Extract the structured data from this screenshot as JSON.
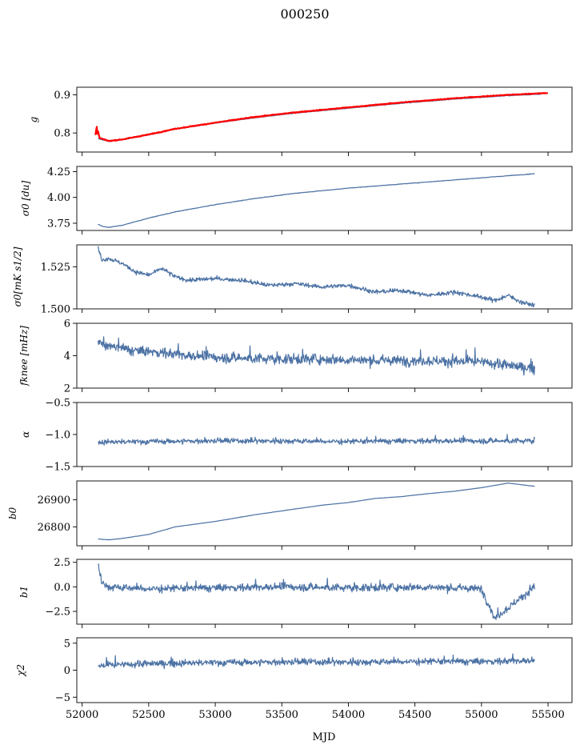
{
  "figure": {
    "title": "000250",
    "xlabel": "MJD"
  },
  "colors": {
    "series": "#4c72a4",
    "overlay": "#ff0000",
    "axes": "#000000",
    "background": "#ffffff"
  },
  "chart_data": [
    {
      "type": "line",
      "ylabel": "g",
      "xlim": [
        51960,
        55680
      ],
      "ylim": [
        0.75,
        0.92
      ],
      "yticks": [
        0.8,
        0.9
      ],
      "ytick_labels": [
        "0.8",
        "0.9"
      ],
      "series": [
        {
          "x": [
            52120,
            52200,
            52300,
            52500,
            52700,
            53000,
            53300,
            53600,
            54000,
            54400,
            54800,
            55200,
            55450
          ],
          "values": [
            0.785,
            0.778,
            0.782,
            0.795,
            0.81,
            0.826,
            0.84,
            0.852,
            0.865,
            0.878,
            0.889,
            0.898,
            0.902
          ]
        },
        {
          "x": [
            52100,
            52110,
            52115,
            52120,
            52130,
            52200,
            52300,
            52500,
            52700,
            53000,
            53300,
            53600,
            54000,
            54400,
            54800,
            55200,
            55500
          ],
          "values": [
            0.795,
            0.818,
            0.792,
            0.805,
            0.787,
            0.779,
            0.783,
            0.796,
            0.811,
            0.827,
            0.842,
            0.854,
            0.867,
            0.88,
            0.891,
            0.9,
            0.905
          ]
        }
      ]
    },
    {
      "type": "line",
      "ylabel": "σ0 [du]",
      "xlim": [
        51960,
        55680
      ],
      "ylim": [
        3.68,
        4.3
      ],
      "yticks": [
        3.75,
        4.0,
        4.25
      ],
      "ytick_labels": [
        "3.75",
        "4.00",
        "4.25"
      ],
      "series": [
        {
          "x": [
            52120,
            52150,
            52200,
            52300,
            52500,
            52700,
            53000,
            53300,
            53600,
            54000,
            54400,
            54800,
            55200,
            55400
          ],
          "values": [
            3.74,
            3.72,
            3.71,
            3.73,
            3.8,
            3.86,
            3.93,
            3.99,
            4.04,
            4.09,
            4.13,
            4.17,
            4.21,
            4.23
          ]
        }
      ]
    },
    {
      "type": "line",
      "ylabel": "σ0[mK s1/2]",
      "xlim": [
        51960,
        55680
      ],
      "ylim": [
        1.5,
        1.538
      ],
      "yticks": [
        1.5,
        1.525
      ],
      "ytick_labels": [
        "1.500",
        "1.525"
      ],
      "series": [
        {
          "x": [
            52120,
            52150,
            52200,
            52300,
            52400,
            52500,
            52600,
            52700,
            52800,
            53000,
            53200,
            53400,
            53600,
            53800,
            54000,
            54200,
            54400,
            54600,
            54800,
            55000,
            55100,
            55200,
            55300,
            55400
          ],
          "values": [
            1.536,
            1.529,
            1.53,
            1.527,
            1.522,
            1.52,
            1.524,
            1.519,
            1.517,
            1.518,
            1.517,
            1.514,
            1.515,
            1.513,
            1.514,
            1.51,
            1.511,
            1.508,
            1.51,
            1.507,
            1.505,
            1.508,
            1.504,
            1.502
          ]
        }
      ]
    },
    {
      "type": "line",
      "ylabel": "fknee [mHz]",
      "xlim": [
        51960,
        55680
      ],
      "ylim": [
        2,
        6
      ],
      "yticks": [
        2,
        4,
        6
      ],
      "ytick_labels": [
        "2",
        "4",
        "6"
      ],
      "series": [
        {
          "x": [
            52120,
            52200,
            52400,
            52600,
            52800,
            53000,
            53400,
            53800,
            54200,
            54600,
            55000,
            55400
          ],
          "values": [
            4.9,
            4.6,
            4.3,
            4.2,
            4.0,
            3.9,
            3.8,
            3.8,
            3.7,
            3.7,
            3.6,
            3.2
          ]
        }
      ]
    },
    {
      "type": "line",
      "ylabel": "α",
      "xlim": [
        51960,
        55680
      ],
      "ylim": [
        -1.5,
        -0.5
      ],
      "yticks": [
        -1.5,
        -1.0,
        -0.5
      ],
      "ytick_labels": [
        "−1.5",
        "−1.0",
        "−0.5"
      ],
      "series": [
        {
          "x": [
            52120,
            52500,
            53000,
            53500,
            54000,
            54500,
            55000,
            55400
          ],
          "values": [
            -1.12,
            -1.11,
            -1.1,
            -1.1,
            -1.11,
            -1.1,
            -1.1,
            -1.1
          ]
        }
      ]
    },
    {
      "type": "line",
      "ylabel": "b0",
      "xlim": [
        51960,
        55680
      ],
      "ylim": [
        26730,
        26970
      ],
      "yticks": [
        26800,
        26900
      ],
      "ytick_labels": [
        "26800",
        "26900"
      ],
      "series": [
        {
          "x": [
            52120,
            52200,
            52300,
            52500,
            52700,
            53000,
            53300,
            53600,
            53800,
            54000,
            54200,
            54400,
            54600,
            54800,
            55000,
            55200,
            55400
          ],
          "values": [
            26755,
            26752,
            26757,
            26772,
            26800,
            26820,
            26845,
            26866,
            26880,
            26890,
            26905,
            26912,
            26923,
            26932,
            26945,
            26962,
            26950
          ]
        }
      ]
    },
    {
      "type": "line",
      "ylabel": "b1",
      "xlim": [
        51960,
        55680
      ],
      "ylim": [
        -3.8,
        2.8
      ],
      "yticks": [
        -2.5,
        0.0,
        2.5
      ],
      "ytick_labels": [
        "−2.5",
        "0.0",
        "2.5"
      ],
      "series": [
        {
          "x": [
            52120,
            52150,
            52200,
            52500,
            53000,
            53500,
            54000,
            54500,
            55000,
            55100,
            55400
          ],
          "values": [
            2.4,
            0.4,
            0.0,
            -0.2,
            -0.1,
            0.0,
            -0.1,
            0.0,
            -0.2,
            -3.2,
            0.0
          ]
        }
      ]
    },
    {
      "type": "line",
      "ylabel": "χ2",
      "xlim": [
        51960,
        55680
      ],
      "ylim": [
        -6,
        6
      ],
      "yticks": [
        -5,
        0,
        5
      ],
      "ytick_labels": [
        "−5",
        "0",
        "5"
      ],
      "series": [
        {
          "x": [
            52120,
            52500,
            53000,
            53500,
            54000,
            54500,
            55000,
            55400
          ],
          "values": [
            0.8,
            1.2,
            1.4,
            1.5,
            1.5,
            1.6,
            1.6,
            1.8
          ]
        }
      ]
    }
  ],
  "xaxis": {
    "ticks": [
      52000,
      52500,
      53000,
      53500,
      54000,
      54500,
      55000,
      55500
    ],
    "tick_labels": [
      "52000",
      "52500",
      "53000",
      "53500",
      "54000",
      "54500",
      "55000",
      "55500"
    ]
  }
}
